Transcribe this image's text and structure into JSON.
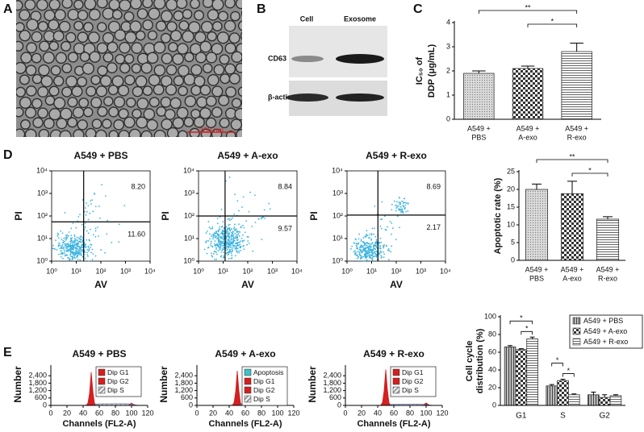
{
  "panels": [
    "A",
    "B",
    "C",
    "D",
    "E"
  ],
  "micrograph": {
    "scale_bar": "200 nm"
  },
  "blot": {
    "columns": [
      "Cell",
      "Exosome"
    ],
    "rows": [
      "CD63",
      "β-actin"
    ]
  },
  "chart_data": [
    {
      "type": "bar",
      "categories": [
        [
          "A549 +",
          "PBS"
        ],
        [
          "A549 +",
          "A-exo"
        ],
        [
          "A549 +",
          "R-exo"
        ]
      ],
      "values": [
        1.9,
        2.1,
        2.8
      ],
      "errors": [
        0.1,
        0.1,
        0.35
      ],
      "patterns": [
        "dots",
        "checker",
        "hlines"
      ],
      "ylim": [
        0,
        4
      ],
      "yticks": [
        0,
        1,
        2,
        3,
        4
      ],
      "ylabel": [
        "IC₅₀ of",
        "DDP (μg/mL)"
      ],
      "significance": [
        {
          "from": 0,
          "to": 2,
          "label": "**"
        },
        {
          "from": 1,
          "to": 2,
          "label": "*"
        }
      ]
    },
    {
      "type": "scatter",
      "title": "A549 + PBS",
      "xlabel": "AV",
      "ylabel": "PI",
      "xscale": "log",
      "yscale": "log",
      "color": "#3fb4e0",
      "xlim": [
        1,
        10000
      ],
      "ylim": [
        1,
        10000
      ],
      "xticks": [
        {
          "value": 1,
          "label": "10⁰"
        },
        {
          "value": 10,
          "label": "10¹"
        },
        {
          "value": 100,
          "label": "10²"
        },
        {
          "value": 1000,
          "label": "10³"
        },
        {
          "value": 10000,
          "label": "10⁴"
        }
      ],
      "yticks": [
        {
          "value": 1,
          "label": "10⁰"
        },
        {
          "value": 10,
          "label": "10¹"
        },
        {
          "value": 100,
          "label": "10²"
        },
        {
          "value": 1000,
          "label": "10³"
        },
        {
          "value": 10000,
          "label": "10⁴"
        }
      ],
      "gate": [
        20,
        55
      ],
      "quadrants": {
        "upper_right": "8.20",
        "lower_right": "11.60"
      }
    },
    {
      "type": "scatter",
      "title": "A549 + A-exo",
      "xlabel": "AV",
      "ylabel": "PI",
      "xscale": "log",
      "yscale": "log",
      "color": "#3fb4e0",
      "xlim": [
        1,
        10000
      ],
      "ylim": [
        1,
        10000
      ],
      "xticks": [
        {
          "value": 1,
          "label": "10⁰"
        },
        {
          "value": 10,
          "label": "10¹"
        },
        {
          "value": 100,
          "label": "10²"
        },
        {
          "value": 1000,
          "label": "10³"
        },
        {
          "value": 10000,
          "label": "10⁴"
        }
      ],
      "yticks": [
        {
          "value": 1,
          "label": "10⁰"
        },
        {
          "value": 10,
          "label": "10¹"
        },
        {
          "value": 100,
          "label": "10²"
        },
        {
          "value": 1000,
          "label": "10³"
        },
        {
          "value": 10000,
          "label": "10⁴"
        }
      ],
      "gate": [
        12,
        100
      ],
      "quadrants": {
        "upper_right": "8.84",
        "lower_right": "9.57"
      }
    },
    {
      "type": "scatter",
      "title": "A549 + R-exo",
      "xlabel": "AV",
      "ylabel": "PI",
      "xscale": "log",
      "yscale": "log",
      "color": "#3fb4e0",
      "xlim": [
        1,
        10000
      ],
      "ylim": [
        1,
        10000
      ],
      "xticks": [
        {
          "value": 1,
          "label": "10⁰"
        },
        {
          "value": 10,
          "label": "10¹"
        },
        {
          "value": 100,
          "label": "10²"
        },
        {
          "value": 1000,
          "label": "10³"
        },
        {
          "value": 10000,
          "label": "10⁴"
        }
      ],
      "yticks": [
        {
          "value": 1,
          "label": "10⁰"
        },
        {
          "value": 10,
          "label": "10¹"
        },
        {
          "value": 100,
          "label": "10²"
        },
        {
          "value": 1000,
          "label": "10³"
        },
        {
          "value": 10000,
          "label": "10⁴"
        }
      ],
      "gate": [
        18,
        110
      ],
      "quadrants": {
        "upper_right": "8.69",
        "lower_right": "2.17"
      }
    },
    {
      "type": "bar",
      "categories": [
        [
          "A549 +",
          "PBS"
        ],
        [
          "A549 +",
          "A-exo"
        ],
        [
          "A549 +",
          "R-exo"
        ]
      ],
      "values": [
        20,
        18.8,
        11.6
      ],
      "errors": [
        1.5,
        3.5,
        0.7
      ],
      "patterns": [
        "dots",
        "checker",
        "hlines"
      ],
      "ylim": [
        0,
        25
      ],
      "yticks": [
        0,
        5,
        10,
        15,
        20,
        25
      ],
      "ylabel": [
        "Apoptotic rate (%)"
      ],
      "significance": [
        {
          "from": 0,
          "to": 2,
          "label": "**"
        },
        {
          "from": 1,
          "to": 2,
          "label": "*"
        }
      ]
    },
    {
      "type": "area",
      "title": "A549 + PBS",
      "xlabel": "Channels (FL2-A)",
      "ylabel": "Number",
      "legend": "upper right",
      "xlim": [
        0,
        120
      ],
      "xticks": [
        0,
        20,
        40,
        60,
        80,
        100,
        120
      ],
      "ylim": [
        0,
        3000
      ],
      "yticks": [
        0,
        600,
        {
          "value": 1200,
          "label": "1,200"
        },
        {
          "value": 1800,
          "label": "1,800"
        },
        {
          "value": 2400,
          "label": "2,400"
        }
      ],
      "x": [
        30,
        40,
        44,
        46,
        48,
        50,
        52,
        54,
        56,
        60,
        80,
        92,
        96,
        98,
        100,
        102,
        104,
        108,
        120
      ],
      "series": [
        {
          "name": "Dip G1",
          "color": "#d42020",
          "values": [
            0,
            0,
            20,
            200,
            1000,
            2700,
            1200,
            200,
            20,
            0,
            0,
            0,
            0,
            0,
            0,
            0,
            0,
            0,
            0
          ]
        },
        {
          "name": "Dip G2",
          "color": "#d42020",
          "values": [
            0,
            0,
            0,
            0,
            0,
            0,
            0,
            0,
            0,
            0,
            0,
            0,
            20,
            100,
            180,
            100,
            20,
            0,
            0
          ]
        },
        {
          "name": "Dip S",
          "color": "#a0a0a0",
          "values": [
            0,
            0,
            0,
            0,
            0,
            0,
            0,
            60,
            100,
            120,
            130,
            130,
            120,
            110,
            100,
            80,
            40,
            0,
            0
          ]
        }
      ]
    },
    {
      "type": "area",
      "title": "A549 + A-exo",
      "xlabel": "Channels (FL2-A)",
      "ylabel": "Number",
      "legend": "upper right",
      "xlim": [
        0,
        120
      ],
      "xticks": [
        0,
        20,
        40,
        60,
        80,
        100,
        120
      ],
      "ylim": [
        0,
        3000
      ],
      "yticks": [
        0,
        600,
        {
          "value": 1200,
          "label": "1,200"
        },
        {
          "value": 1800,
          "label": "1,800"
        },
        {
          "value": 2400,
          "label": "2,400"
        }
      ],
      "x": [
        30,
        40,
        44,
        46,
        48,
        50,
        52,
        54,
        56,
        60,
        80,
        92,
        96,
        98,
        100,
        102,
        104,
        108,
        120
      ],
      "series": [
        {
          "name": "Apoptosis",
          "color": "#40c0c8",
          "values": [
            0,
            0,
            0,
            0,
            0,
            0,
            0,
            0,
            0,
            0,
            0,
            0,
            0,
            0,
            0,
            0,
            0,
            0,
            0
          ]
        },
        {
          "name": "Dip G1",
          "color": "#d42020",
          "values": [
            0,
            0,
            20,
            220,
            1100,
            2800,
            1200,
            200,
            20,
            0,
            0,
            0,
            0,
            0,
            0,
            0,
            0,
            0,
            0
          ]
        },
        {
          "name": "Dip G2",
          "color": "#d42020",
          "values": [
            0,
            0,
            0,
            0,
            0,
            0,
            0,
            0,
            0,
            0,
            0,
            0,
            20,
            90,
            160,
            90,
            20,
            0,
            0
          ]
        },
        {
          "name": "Dip S",
          "color": "#a0a0a0",
          "values": [
            0,
            0,
            0,
            0,
            0,
            0,
            0,
            70,
            120,
            140,
            150,
            150,
            140,
            120,
            110,
            90,
            40,
            0,
            0
          ]
        }
      ]
    },
    {
      "type": "area",
      "title": "A549 + R-exo",
      "xlabel": "Channels (FL2-A)",
      "ylabel": "Number",
      "legend": "upper right",
      "xlim": [
        0,
        120
      ],
      "xticks": [
        0,
        20,
        40,
        60,
        80,
        100,
        120
      ],
      "ylim": [
        0,
        3000
      ],
      "yticks": [
        0,
        600,
        {
          "value": 1200,
          "label": "1,200"
        },
        {
          "value": 1800,
          "label": "1,800"
        },
        {
          "value": 2400,
          "label": "2,400"
        }
      ],
      "x": [
        30,
        40,
        44,
        46,
        48,
        50,
        52,
        54,
        56,
        60,
        80,
        92,
        96,
        98,
        100,
        102,
        104,
        108,
        120
      ],
      "series": [
        {
          "name": "Dip G1",
          "color": "#d42020",
          "values": [
            0,
            0,
            20,
            250,
            1200,
            2900,
            1300,
            220,
            20,
            0,
            0,
            0,
            0,
            0,
            0,
            0,
            0,
            0,
            0
          ]
        },
        {
          "name": "Dip G2",
          "color": "#d42020",
          "values": [
            0,
            0,
            0,
            0,
            0,
            0,
            0,
            0,
            0,
            0,
            0,
            0,
            20,
            110,
            200,
            110,
            20,
            0,
            0
          ]
        },
        {
          "name": "Dip S",
          "color": "#a0a0a0",
          "values": [
            0,
            0,
            0,
            0,
            0,
            0,
            0,
            40,
            70,
            80,
            90,
            90,
            80,
            70,
            60,
            50,
            30,
            0,
            0
          ]
        }
      ]
    },
    {
      "type": "bar",
      "categories": [
        "G1",
        "S",
        "G2"
      ],
      "ylabel": [
        "Cell cycle",
        "distribution (%)"
      ],
      "legend": "upper right",
      "ylim": [
        0,
        100
      ],
      "yticks": [
        0,
        20,
        40,
        60,
        80,
        100
      ],
      "series": [
        {
          "name": "A549 + PBS",
          "pattern": "vlines",
          "values": [
            66,
            22,
            12
          ],
          "errors": [
            1.5,
            1.5,
            3
          ]
        },
        {
          "name": "A549 + A-exo",
          "pattern": "checker",
          "values": [
            63,
            28,
            9
          ],
          "errors": [
            1,
            1.5,
            3
          ]
        },
        {
          "name": "A549 + R-exo",
          "pattern": "hlines",
          "values": [
            75,
            12,
            11
          ],
          "errors": [
            2,
            1,
            1
          ]
        }
      ],
      "significance": [
        {
          "category": 0,
          "from": 0,
          "to": 2,
          "label": "*"
        },
        {
          "category": 0,
          "from": 1,
          "to": 2,
          "label": "*"
        },
        {
          "category": 1,
          "from": 0,
          "to": 1,
          "label": "*"
        },
        {
          "category": 1,
          "from": 1,
          "to": 2,
          "label": "*"
        }
      ]
    }
  ]
}
